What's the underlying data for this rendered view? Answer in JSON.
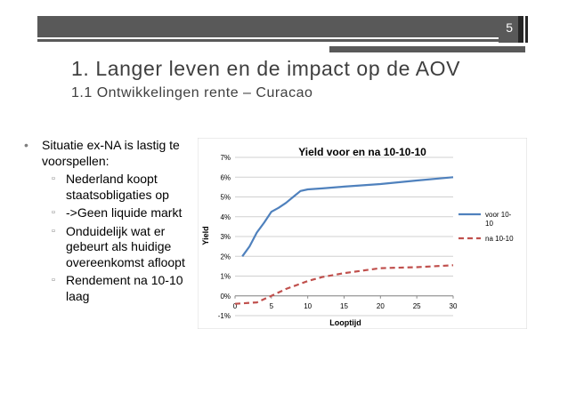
{
  "slide": {
    "page_number": "5"
  },
  "title": "1. Langer leven en de impact op de AOV",
  "subtitle": "1.1 Ontwikkelingen rente – Curacao",
  "bullets": {
    "main": "Situatie ex-NA is lastig te voorspellen:",
    "subs": [
      "Nederland koopt staatsobligaties op",
      "->Geen liquide markt",
      "Onduidelijk wat er gebeurt als huidige overeenkomst afloopt",
      "Rendement na 10-10 laag"
    ]
  },
  "chart_data": {
    "type": "line",
    "title": "Yield voor en na 10-10-10",
    "xlabel": "Looptijd",
    "ylabel": "Yield",
    "xlim": [
      0,
      30
    ],
    "ylim": [
      -1,
      7
    ],
    "xticks": [
      "0",
      "5",
      "10",
      "15",
      "20",
      "25",
      "30"
    ],
    "yticks": [
      "-1%",
      "0%",
      "1%",
      "2%",
      "3%",
      "4%",
      "5%",
      "6%",
      "7%"
    ],
    "grid": true,
    "legend": "right",
    "series": [
      {
        "name": "voor 10-10",
        "color": "#4f81bd",
        "style": "solid",
        "x": [
          1,
          2,
          3,
          4,
          5,
          6,
          7,
          8,
          9,
          10,
          12,
          15,
          20,
          25,
          30
        ],
        "y": [
          2.0,
          2.5,
          3.2,
          3.7,
          4.25,
          4.45,
          4.7,
          5.0,
          5.3,
          5.38,
          5.43,
          5.52,
          5.65,
          5.83,
          6.0
        ]
      },
      {
        "name": "na 10-10",
        "color": "#c0504d",
        "style": "dashed",
        "x": [
          0,
          3,
          5,
          7,
          10,
          12,
          15,
          20,
          25,
          30
        ],
        "y": [
          -0.4,
          -0.33,
          0.0,
          0.35,
          0.75,
          0.95,
          1.15,
          1.4,
          1.45,
          1.55
        ]
      }
    ]
  }
}
